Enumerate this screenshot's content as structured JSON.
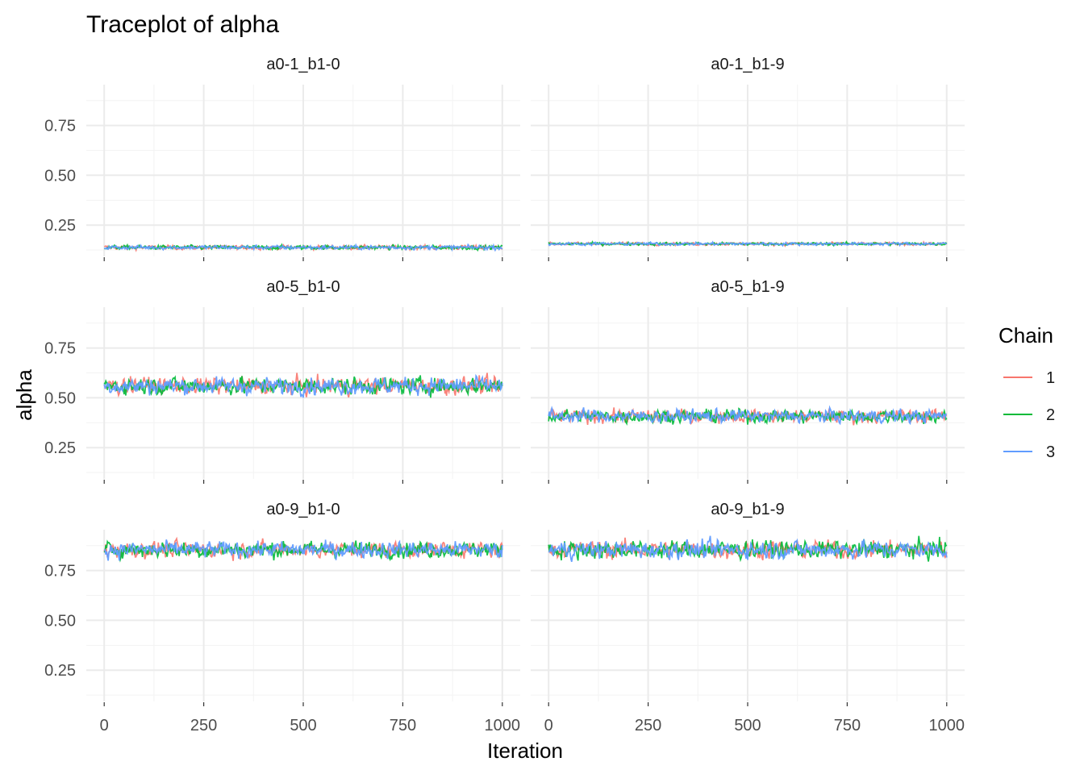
{
  "chart_data": {
    "type": "line",
    "title": "Traceplot of alpha",
    "xlabel": "Iteration",
    "ylabel": "alpha",
    "xlim": [
      -45,
      1045
    ],
    "ylim": [
      0.093,
      0.955
    ],
    "x_ticks": [
      0,
      250,
      500,
      750,
      1000
    ],
    "x_tick_labels": [
      "0",
      "250",
      "500",
      "750",
      "1000"
    ],
    "y_ticks": [
      0.25,
      0.5,
      0.75
    ],
    "y_tick_labels": [
      "0.25",
      "0.50",
      "0.75"
    ],
    "grid": true,
    "legend": {
      "title": "Chain",
      "position": "right",
      "entries": [
        {
          "label": "1",
          "color": "#F8766D"
        },
        {
          "label": "2",
          "color": "#00BA38"
        },
        {
          "label": "3",
          "color": "#619CFF"
        }
      ]
    },
    "n_iterations": 1000,
    "panels": [
      {
        "label": "a0-1_b1-0",
        "mean": 0.138,
        "spread": 0.022
      },
      {
        "label": "a0-1_b1-9",
        "mean": 0.156,
        "spread": 0.016
      },
      {
        "label": "a0-5_b1-0",
        "mean": 0.56,
        "spread": 0.09
      },
      {
        "label": "a0-5_b1-9",
        "mean": 0.408,
        "spread": 0.07
      },
      {
        "label": "a0-9_b1-0",
        "mean": 0.855,
        "spread": 0.085
      },
      {
        "label": "a0-9_b1-9",
        "mean": 0.855,
        "spread": 0.095
      }
    ]
  }
}
